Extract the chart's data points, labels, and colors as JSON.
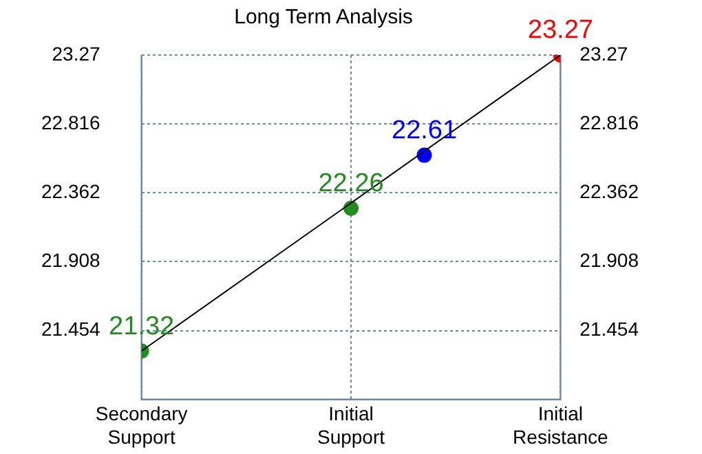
{
  "chart_data": {
    "type": "scatter",
    "title": "Long Term Analysis",
    "categories": [
      "Secondary Support",
      null,
      null,
      null,
      null,
      null,
      null,
      null,
      null,
      null,
      null,
      null,
      null,
      null,
      null,
      null,
      null,
      null,
      null,
      null,
      "Initial Support",
      null,
      null,
      null,
      null,
      null,
      null,
      null,
      null,
      null,
      null,
      null,
      null,
      null,
      null,
      null,
      null,
      null,
      null,
      null,
      "Initial Resistance"
    ],
    "ylim": [
      21.0,
      23.27
    ],
    "yticks": [
      21.454,
      21.908,
      22.362,
      22.816,
      23.27
    ],
    "y2lim": [
      21.0,
      23.27
    ],
    "y2ticks": [
      21.454,
      21.908,
      22.362,
      22.816,
      23.27
    ],
    "grid": true,
    "legend": false,
    "series": [
      {
        "type": "line",
        "values": [
          21.32,
          null,
          null,
          null,
          null,
          null,
          null,
          null,
          null,
          null,
          null,
          null,
          null,
          null,
          null,
          null,
          null,
          null,
          null,
          null,
          null,
          null,
          null,
          null,
          null,
          null,
          null,
          null,
          null,
          null,
          null,
          null,
          null,
          null,
          null,
          null,
          null,
          null,
          null,
          null,
          23.27
        ],
        "color": "#000000",
        "marker": "none"
      },
      {
        "values": [
          21.32,
          null,
          null,
          null,
          null,
          null,
          null,
          null,
          null,
          null,
          null,
          null,
          null,
          null,
          null,
          null,
          null,
          null,
          null,
          null,
          22.26,
          null,
          null,
          null,
          null,
          null,
          null,
          22.61,
          null,
          null,
          null,
          null,
          null,
          null,
          null,
          null,
          null,
          null,
          null,
          null,
          23.27
        ],
        "colors": [
          "#228b22",
          null,
          null,
          null,
          null,
          null,
          null,
          null,
          null,
          null,
          null,
          null,
          null,
          null,
          null,
          null,
          null,
          null,
          null,
          null,
          "#228b22",
          null,
          null,
          null,
          null,
          null,
          null,
          "#0000ff",
          null,
          null,
          null,
          null,
          null,
          null,
          null,
          null,
          null,
          null,
          null,
          null,
          "#ff0000"
        ],
        "marker": "circle",
        "value_labels": [
          "21.32",
          null,
          null,
          null,
          null,
          null,
          null,
          null,
          null,
          null,
          null,
          null,
          null,
          null,
          null,
          null,
          null,
          null,
          null,
          null,
          "22.26",
          null,
          null,
          null,
          null,
          null,
          null,
          "22.61",
          null,
          null,
          null,
          null,
          null,
          null,
          null,
          null,
          null,
          null,
          null,
          null,
          "23.27"
        ]
      }
    ]
  }
}
